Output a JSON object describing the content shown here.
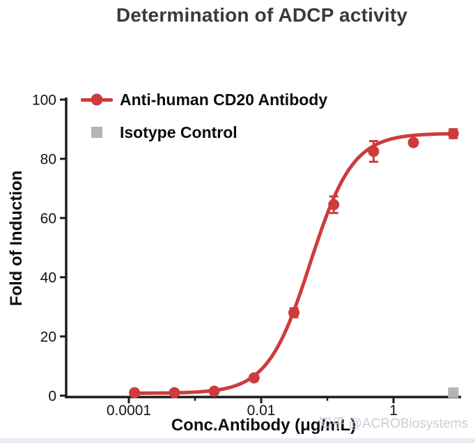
{
  "watermark": "知乎 @ACROBiosystems",
  "chart_data": {
    "type": "line",
    "title": "Determination of ADCP activity",
    "xlabel": "Conc.Antibody (μg/mL)",
    "ylabel": "Fold of Induction",
    "x_scale": "log10",
    "xlim": [
      1.2e-05,
      10
    ],
    "ylim": [
      0,
      100
    ],
    "grid": false,
    "legend_position": "inside top-left",
    "axis_color": "#1b1b1d",
    "y_ticks": [
      0,
      20,
      40,
      60,
      80,
      100
    ],
    "x_major_ticks": [
      0.0001,
      0.01,
      1
    ],
    "x_major_tick_labels": [
      "0.0001",
      "0.01",
      "1"
    ],
    "x_minor_ticks": [
      0.001,
      0.1
    ],
    "series": [
      {
        "name": "Anti-human CD20 Antibody",
        "color": "#ce3b3c",
        "marker": "circle",
        "x": [
          0.000122,
          0.000488,
          0.00195,
          0.0078,
          0.03125,
          0.125,
          0.5,
          2,
          8
        ],
        "y": [
          1,
          1,
          1.5,
          6,
          28,
          64.5,
          82.5,
          85.5,
          88.5
        ],
        "yerr": [
          0.5,
          0.5,
          0.5,
          0.8,
          1.5,
          2.8,
          3.5,
          1.0,
          1.5
        ],
        "fit_4pl": {
          "bottom": 0.8,
          "top": 88.6,
          "ec50": 0.055,
          "hill": 1.35
        }
      },
      {
        "name": "Isotype Control",
        "color": "#b4b4b7",
        "marker": "square",
        "x": [
          8
        ],
        "y": [
          1
        ],
        "yerr": [
          0.5
        ]
      }
    ]
  }
}
